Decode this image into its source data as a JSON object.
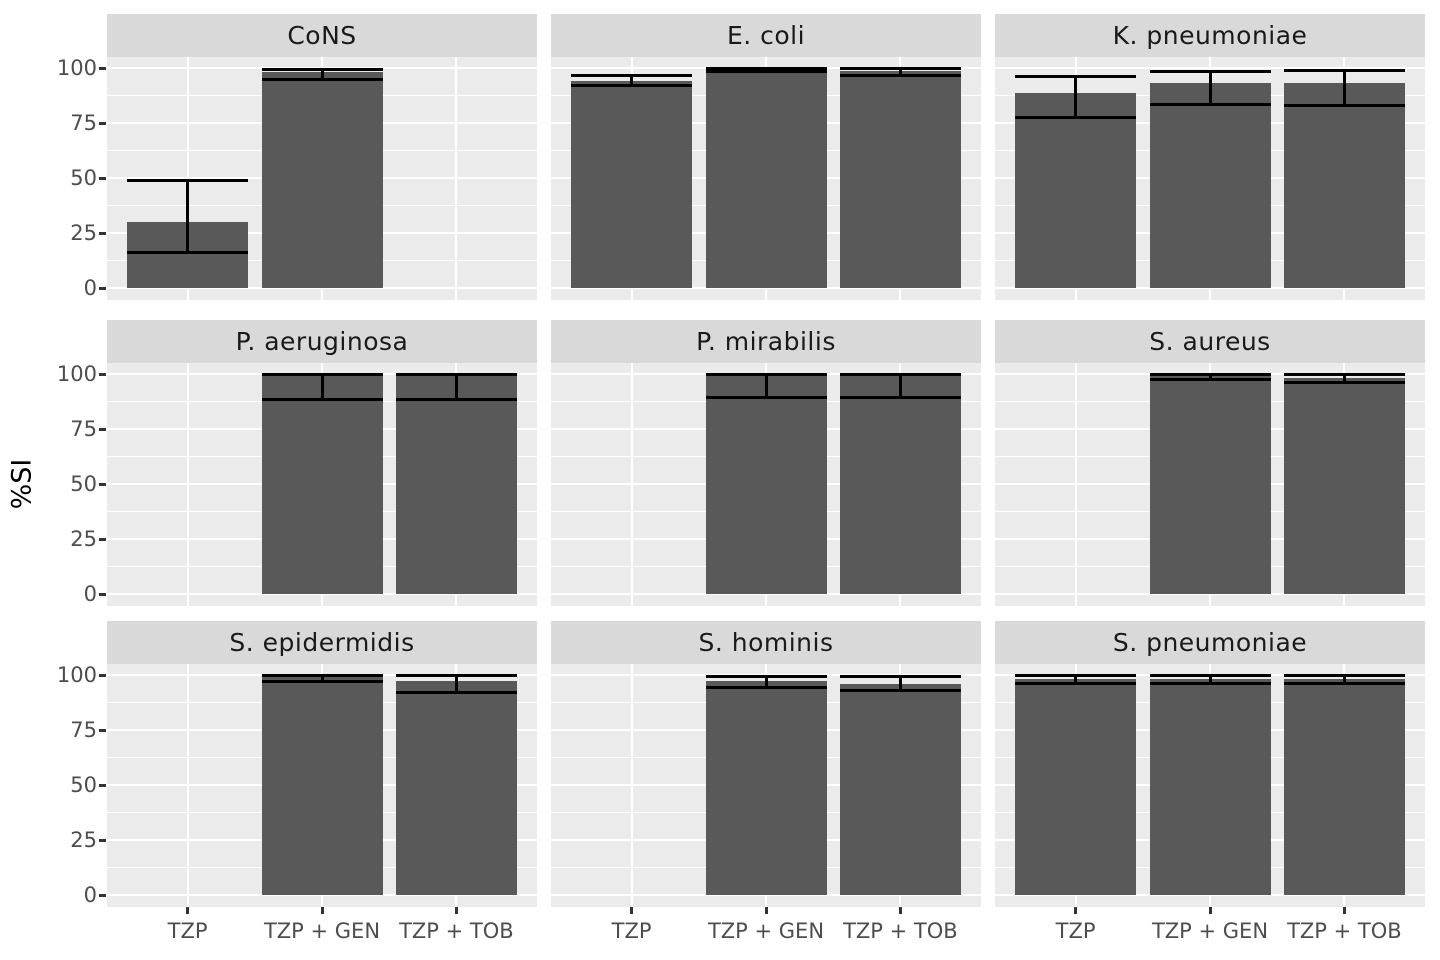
{
  "axis": {
    "y_label": "%SI",
    "y_tick_labels": [
      "0",
      "25",
      "50",
      "75",
      "100"
    ],
    "x_tick_labels": [
      "TZP",
      "TZP + GEN",
      "TZP + TOB"
    ]
  },
  "colors": {
    "bar_fill": "#595959",
    "panel_background": "#ebebeb",
    "strip_background": "#d9d9d9",
    "gridline": "#ffffff",
    "error_bar": "#000000",
    "axis_text": "#4d4d4d",
    "strip_text": "#1a1a1a",
    "tick_mark": "#333333"
  },
  "chart_data": {
    "type": "bar",
    "title": "",
    "xlabel": "",
    "ylabel": "%SI",
    "ylim": [
      0,
      100
    ],
    "y_major_ticks": [
      0,
      25,
      50,
      75,
      100
    ],
    "y_minor_ticks": [
      12.5,
      37.5,
      62.5,
      87.5
    ],
    "grid": "on",
    "legend": "none",
    "x_categories": [
      "TZP",
      "TZP + GEN",
      "TZP + TOB"
    ],
    "error_bars": "95% confidence interval",
    "facets": [
      {
        "name": "CoNS",
        "bars": [
          {
            "x": "TZP",
            "value": 30,
            "ci_low": 16,
            "ci_high": 49
          },
          {
            "x": "TZP + GEN",
            "value": 98,
            "ci_low": 95,
            "ci_high": 99.5
          }
        ]
      },
      {
        "name": "E. coli",
        "bars": [
          {
            "x": "TZP",
            "value": 94,
            "ci_low": 92,
            "ci_high": 96.5
          },
          {
            "x": "TZP + GEN",
            "value": 99.5,
            "ci_low": 98.5,
            "ci_high": 100
          },
          {
            "x": "TZP + TOB",
            "value": 98.5,
            "ci_low": 96.5,
            "ci_high": 99.8
          }
        ]
      },
      {
        "name": "K. pneumoniae",
        "bars": [
          {
            "x": "TZP",
            "value": 88.5,
            "ci_low": 77.5,
            "ci_high": 96
          },
          {
            "x": "TZP + GEN",
            "value": 93,
            "ci_low": 83.5,
            "ci_high": 98.5
          },
          {
            "x": "TZP + TOB",
            "value": 93,
            "ci_low": 83,
            "ci_high": 98.7
          }
        ]
      },
      {
        "name": "P. aeruginosa",
        "bars": [
          {
            "x": "TZP + GEN",
            "value": 100,
            "ci_low": 88.5,
            "ci_high": 100
          },
          {
            "x": "TZP + TOB",
            "value": 100,
            "ci_low": 88.5,
            "ci_high": 100
          }
        ]
      },
      {
        "name": "P. mirabilis",
        "bars": [
          {
            "x": "TZP + GEN",
            "value": 100,
            "ci_low": 89.5,
            "ci_high": 100
          },
          {
            "x": "TZP + TOB",
            "value": 100,
            "ci_low": 89.5,
            "ci_high": 100
          }
        ]
      },
      {
        "name": "S. aureus",
        "bars": [
          {
            "x": "TZP + GEN",
            "value": 99.5,
            "ci_low": 97.7,
            "ci_high": 100
          },
          {
            "x": "TZP + TOB",
            "value": 98,
            "ci_low": 96,
            "ci_high": 99.8
          }
        ]
      },
      {
        "name": "S. epidermidis",
        "bars": [
          {
            "x": "TZP + GEN",
            "value": 99,
            "ci_low": 97,
            "ci_high": 100
          },
          {
            "x": "TZP + TOB",
            "value": 97.5,
            "ci_low": 92,
            "ci_high": 99.8
          }
        ]
      },
      {
        "name": "S. hominis",
        "bars": [
          {
            "x": "TZP + GEN",
            "value": 97.5,
            "ci_low": 94.5,
            "ci_high": 99.5
          },
          {
            "x": "TZP + TOB",
            "value": 96,
            "ci_low": 93,
            "ci_high": 99.5
          }
        ]
      },
      {
        "name": "S. pneumoniae",
        "bars": [
          {
            "x": "TZP",
            "value": 98,
            "ci_low": 96.2,
            "ci_high": 99.8
          },
          {
            "x": "TZP + GEN",
            "value": 98,
            "ci_low": 96.3,
            "ci_high": 99.8
          },
          {
            "x": "TZP + TOB",
            "value": 98,
            "ci_low": 96.3,
            "ci_high": 99.8
          }
        ]
      }
    ]
  }
}
